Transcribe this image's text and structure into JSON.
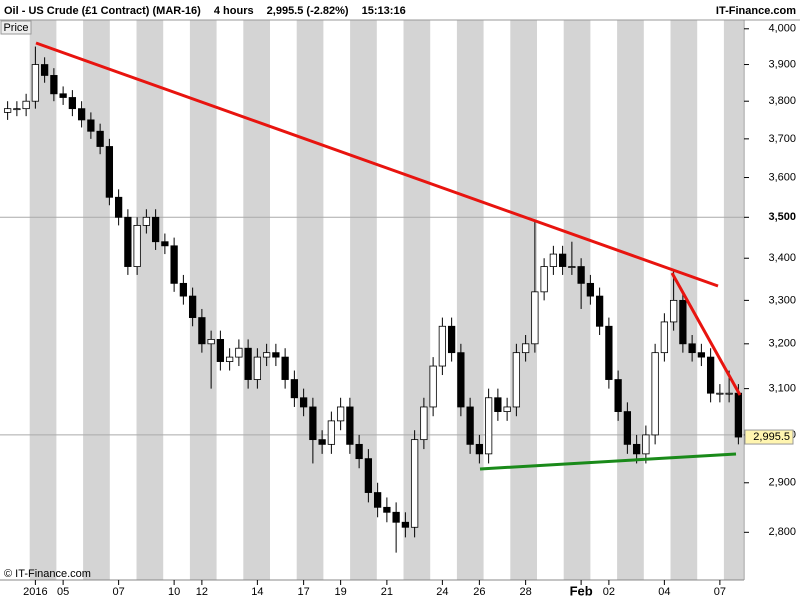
{
  "chart_data": {
    "type": "candlestick",
    "title": "Oil - US Crude (£1 Contract) (MAR-16)",
    "interval": "4 hours",
    "price_change": "2,995.5 (-2.82%)",
    "time": "15:13:16",
    "brand": "IT-Finance.com",
    "copyright": "© IT-Finance.com",
    "axis_label": "Price",
    "log_scale": true,
    "up_color": "#ffffff",
    "down_color": "#000000",
    "ylim": [
      2707,
      4025
    ],
    "yticks": [
      {
        "value": 2800,
        "label": "2,800"
      },
      {
        "value": 2900,
        "label": "2,900"
      },
      {
        "value": 3000,
        "label": "3,000"
      },
      {
        "value": 3100,
        "label": "3,100"
      },
      {
        "value": 3200,
        "label": "3,200"
      },
      {
        "value": 3300,
        "label": "3,300"
      },
      {
        "value": 3400,
        "label": "3,400"
      },
      {
        "value": 3500,
        "label": "3,500"
      },
      {
        "value": 3600,
        "label": "3,600"
      },
      {
        "value": 3700,
        "label": "3,700"
      },
      {
        "value": 3800,
        "label": "3,800"
      },
      {
        "value": 3900,
        "label": "3,900"
      },
      {
        "value": 4000,
        "label": "4,000"
      }
    ],
    "grid_values": [
      3000,
      3500
    ],
    "last_price": {
      "value": 2995.5,
      "label": "2,995.5"
    },
    "categories": [
      null,
      null,
      null,
      "2016",
      null,
      null,
      "05",
      null,
      null,
      null,
      null,
      null,
      "07",
      null,
      null,
      null,
      null,
      null,
      "10",
      null,
      null,
      "12",
      null,
      null,
      null,
      null,
      null,
      "14",
      null,
      null,
      null,
      null,
      "17",
      null,
      null,
      null,
      "19",
      null,
      null,
      null,
      null,
      "21",
      null,
      null,
      null,
      null,
      null,
      "24",
      null,
      null,
      null,
      "26",
      null,
      null,
      null,
      null,
      "28",
      null,
      null,
      null,
      null,
      null,
      "Feb",
      null,
      null,
      "02",
      null,
      null,
      null,
      null,
      null,
      "04",
      null,
      null,
      null,
      null,
      null,
      "07",
      null,
      null
    ],
    "open": [
      3770,
      3780,
      3780,
      3800,
      3900,
      3870,
      3820,
      3810,
      3780,
      3750,
      3720,
      3680,
      3550,
      3500,
      3380,
      3480,
      3500,
      3440,
      3430,
      3340,
      3310,
      3260,
      3200,
      3210,
      3160,
      3170,
      3190,
      3120,
      3170,
      3180,
      3170,
      3120,
      3080,
      3060,
      2990,
      2980,
      3030,
      3060,
      2980,
      2950,
      2880,
      2850,
      2840,
      2820,
      2810,
      2990,
      3060,
      3150,
      3240,
      3180,
      3060,
      2980,
      2960,
      3080,
      3050,
      3060,
      3180,
      3200,
      3320,
      3380,
      3410,
      3380,
      3380,
      3340,
      3310,
      3240,
      3120,
      3050,
      2980,
      2960,
      3000,
      3180,
      3250,
      3300,
      3200,
      3180,
      3170,
      3090,
      3090,
      3090
    ],
    "high": [
      3800,
      3800,
      3820,
      3950,
      3920,
      3890,
      3840,
      3830,
      3800,
      3770,
      3740,
      3700,
      3570,
      3520,
      3500,
      3520,
      3520,
      3460,
      3450,
      3360,
      3330,
      3280,
      3230,
      3230,
      3190,
      3210,
      3210,
      3190,
      3200,
      3200,
      3190,
      3140,
      3100,
      3080,
      3010,
      3050,
      3080,
      3080,
      3000,
      2970,
      2900,
      2870,
      2860,
      2840,
      3010,
      3080,
      3170,
      3260,
      3260,
      3200,
      3080,
      3000,
      3100,
      3100,
      3080,
      3200,
      3220,
      3490,
      3400,
      3430,
      3430,
      3440,
      3400,
      3360,
      3330,
      3260,
      3140,
      3070,
      3000,
      3020,
      3200,
      3270,
      3370,
      3320,
      3220,
      3200,
      3190,
      3110,
      3140,
      3110
    ],
    "low": [
      3750,
      3760,
      3760,
      3780,
      3850,
      3800,
      3790,
      3760,
      3730,
      3700,
      3660,
      3530,
      3480,
      3360,
      3360,
      3460,
      3420,
      3410,
      3320,
      3290,
      3240,
      3180,
      3100,
      3140,
      3140,
      3150,
      3100,
      3100,
      3150,
      3150,
      3100,
      3060,
      3040,
      2940,
      2960,
      2960,
      3010,
      2960,
      2930,
      2860,
      2830,
      2820,
      2760,
      2790,
      2790,
      2970,
      3040,
      3130,
      3160,
      3040,
      2960,
      2940,
      2940,
      3030,
      3030,
      3040,
      3160,
      3180,
      3300,
      3360,
      3360,
      3360,
      3280,
      3290,
      3220,
      3100,
      3030,
      2960,
      2940,
      2940,
      2980,
      3160,
      3230,
      3180,
      3160,
      3150,
      3070,
      3070,
      3070,
      2980
    ],
    "close": [
      3780,
      3780,
      3800,
      3900,
      3870,
      3820,
      3810,
      3780,
      3750,
      3720,
      3680,
      3550,
      3500,
      3380,
      3480,
      3500,
      3440,
      3430,
      3340,
      3310,
      3260,
      3200,
      3210,
      3160,
      3170,
      3190,
      3120,
      3170,
      3180,
      3170,
      3120,
      3080,
      3060,
      2990,
      2980,
      3030,
      3060,
      2980,
      2950,
      2880,
      2850,
      2840,
      2820,
      2810,
      2990,
      3060,
      3150,
      3240,
      3180,
      3060,
      2980,
      2960,
      3080,
      3050,
      3060,
      3180,
      3200,
      3320,
      3380,
      3410,
      3380,
      3380,
      3340,
      3310,
      3240,
      3120,
      3050,
      2980,
      2960,
      3000,
      3180,
      3250,
      3300,
      3200,
      3180,
      3170,
      3090,
      3090,
      3090,
      2995.5
    ]
  }
}
